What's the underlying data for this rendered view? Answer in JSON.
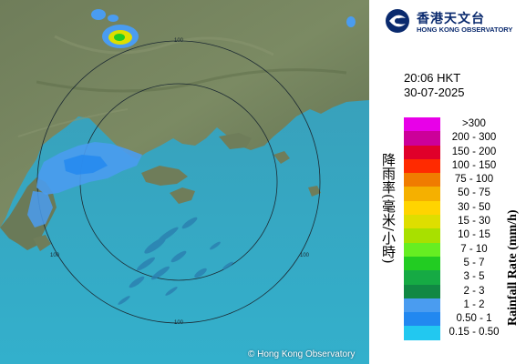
{
  "map": {
    "copyright": "© Hong Kong Observatory",
    "range_rings": [
      {
        "label": "100"
      },
      {
        "label": "100"
      },
      {
        "label": "100"
      },
      {
        "label": "100"
      }
    ]
  },
  "header": {
    "logo_zh": "香港天文台",
    "logo_en": "HONG KONG OBSERVATORY"
  },
  "timestamp": {
    "time": "20:06 HKT",
    "date": "30-07-2025"
  },
  "legend": {
    "title_zh": "降雨率(毫米/小時)",
    "title_en": "Rainfall Rate (mm/h)",
    "items": [
      {
        "label": ">300",
        "color": "#e800e8"
      },
      {
        "label": "200 - 300",
        "color": "#cc0099"
      },
      {
        "label": "150 - 200",
        "color": "#e0002a"
      },
      {
        "label": "100 - 150",
        "color": "#ff2a00"
      },
      {
        "label": "75 - 100",
        "color": "#f07c00"
      },
      {
        "label": "50 - 75",
        "color": "#f5b000"
      },
      {
        "label": "30 - 50",
        "color": "#ffd400"
      },
      {
        "label": "15 - 30",
        "color": "#dede00"
      },
      {
        "label": "10 - 15",
        "color": "#a8e000"
      },
      {
        "label": "7 - 10",
        "color": "#66ee22"
      },
      {
        "label": "5 - 7",
        "color": "#22cc22"
      },
      {
        "label": "3 - 5",
        "color": "#16aa44"
      },
      {
        "label": "2 - 3",
        "color": "#118844"
      },
      {
        "label": "1 - 2",
        "color": "#4a9cf0"
      },
      {
        "label": "0.50 - 1",
        "color": "#2288f0"
      },
      {
        "label": "0.15 - 0.50",
        "color": "#22c8f0"
      }
    ]
  }
}
